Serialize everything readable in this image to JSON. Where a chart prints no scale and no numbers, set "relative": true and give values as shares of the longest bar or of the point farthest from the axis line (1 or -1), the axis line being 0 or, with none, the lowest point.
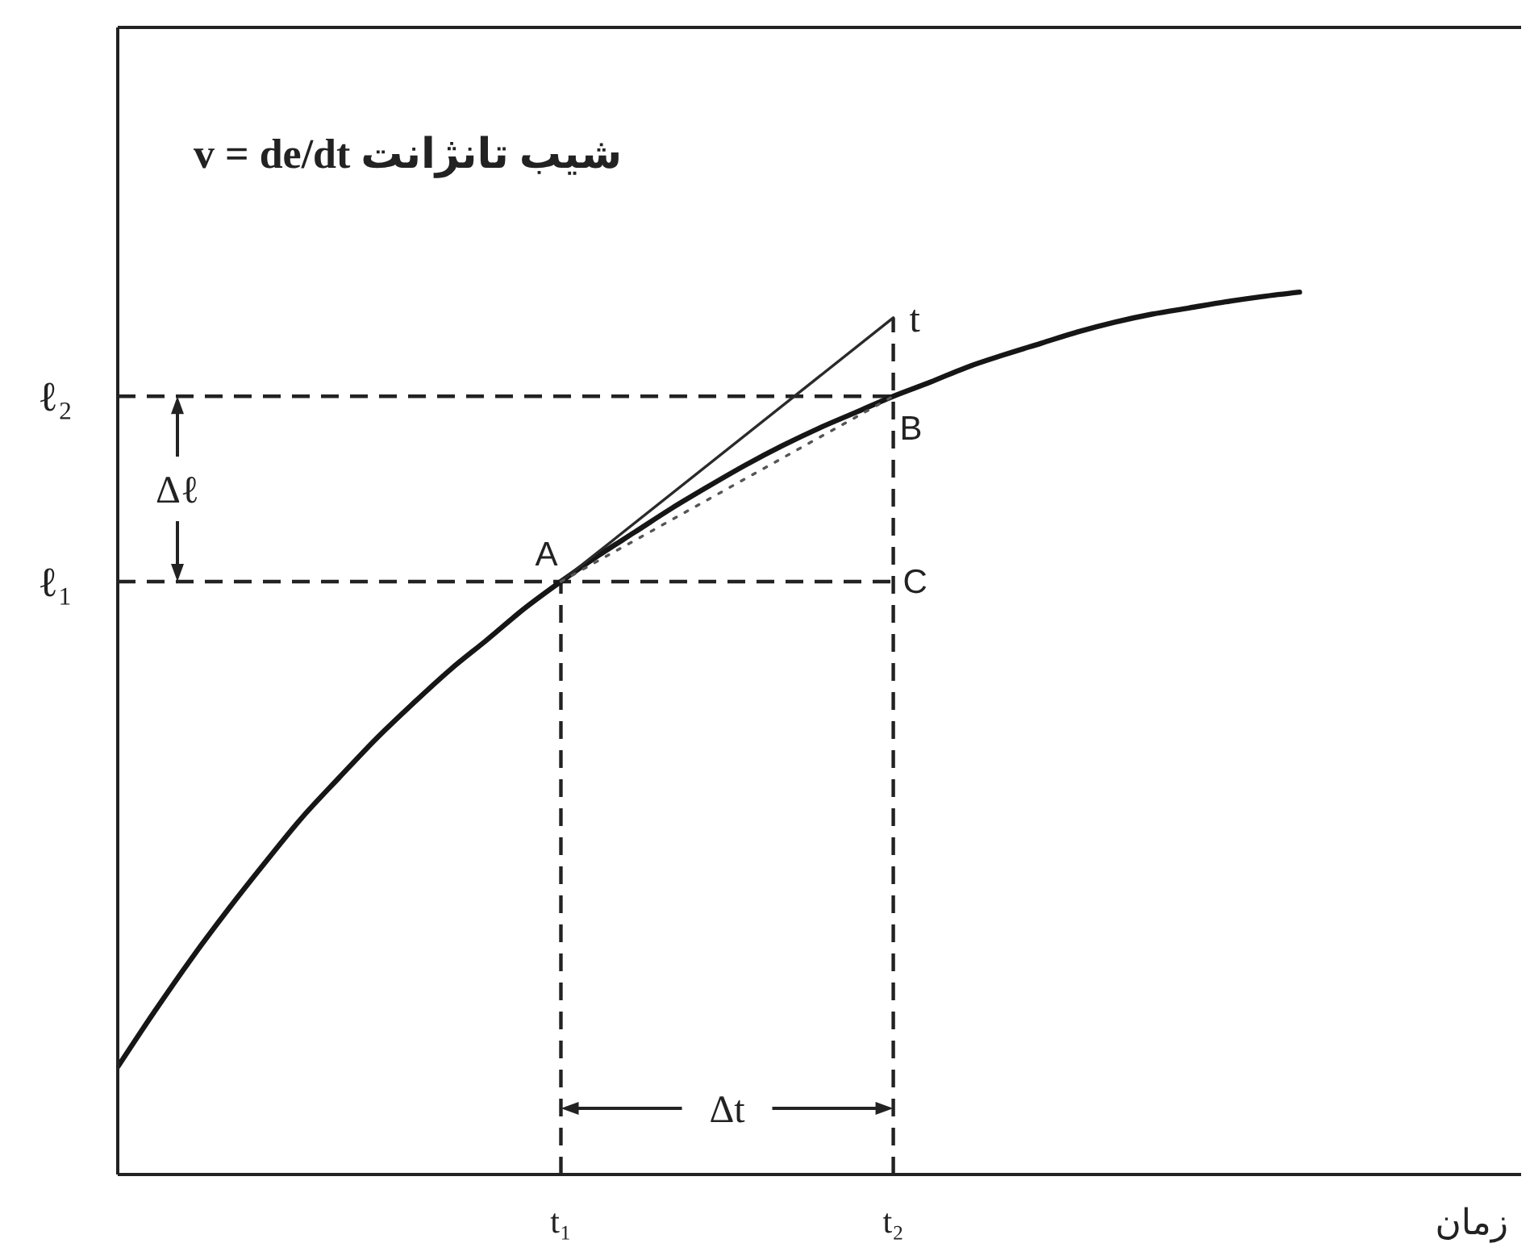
{
  "chart_data": {
    "type": "line",
    "relative": true,
    "xlabel": "زمان",
    "categories": [
      null,
      null,
      null,
      null,
      null,
      null,
      null,
      null,
      null,
      null,
      null,
      null,
      "t₁",
      null,
      null,
      null,
      null,
      null,
      null,
      null,
      null,
      "t₂",
      null,
      null,
      null,
      null,
      null,
      null,
      null,
      null,
      null,
      null,
      null,
      null,
      null,
      null,
      null,
      null,
      null
    ],
    "series": [
      {
        "color": "#161616",
        "values": [
          0.122,
          0.185,
          0.245,
          0.301,
          0.354,
          0.405,
          0.45,
          0.494,
          0.534,
          0.572,
          0.606,
          0.641,
          0.672,
          0.701,
          0.728,
          0.755,
          0.78,
          0.804,
          0.826,
          0.846,
          0.864,
          0.882,
          0.898,
          0.915,
          0.929,
          0.942,
          0.955,
          0.966,
          0.975,
          0.982,
          0.989,
          0.995,
          1,
          null,
          null,
          null,
          null,
          null,
          null
        ]
      },
      {
        "name": "t",
        "color": "#2a2a2a",
        "values": [
          null,
          null,
          null,
          null,
          null,
          null,
          null,
          null,
          null,
          null,
          null,
          null,
          0.672,
          null,
          null,
          null,
          null,
          null,
          null,
          null,
          null,
          0.971,
          null,
          null,
          null,
          null,
          null,
          null,
          null,
          null,
          null,
          null,
          null,
          null,
          null,
          null,
          null,
          null,
          null
        ]
      },
      {
        "color": "#555555",
        "line_style": "dotted",
        "values": [
          null,
          null,
          null,
          null,
          null,
          null,
          null,
          null,
          null,
          null,
          null,
          null,
          0.672,
          null,
          null,
          null,
          null,
          null,
          null,
          null,
          null,
          0.882,
          null,
          null,
          null,
          null,
          null,
          null,
          null,
          null,
          null,
          null,
          null,
          null,
          null,
          null,
          null,
          null,
          null
        ]
      }
    ],
    "ref_lines": [
      {
        "axis": "y",
        "value": 0.882,
        "label": "ℓ₂",
        "line_style": "dashed"
      },
      {
        "axis": "y",
        "value": 0.672,
        "label": "ℓ₁",
        "line_style": "dashed"
      },
      {
        "axis": "x",
        "value": "t₁",
        "line_style": "dashed"
      },
      {
        "axis": "x",
        "value": "t₂",
        "line_style": "dashed"
      }
    ],
    "annotations": [
      "v = de/dt شیب تانژانت",
      {
        "text": "A",
        "x": "t₁",
        "y": 0.672
      },
      {
        "text": "B",
        "x": "t₂",
        "y": 0.882
      },
      {
        "text": "C",
        "x": "t₂",
        "y": 0.672
      },
      "Δℓ",
      "Δt"
    ]
  }
}
